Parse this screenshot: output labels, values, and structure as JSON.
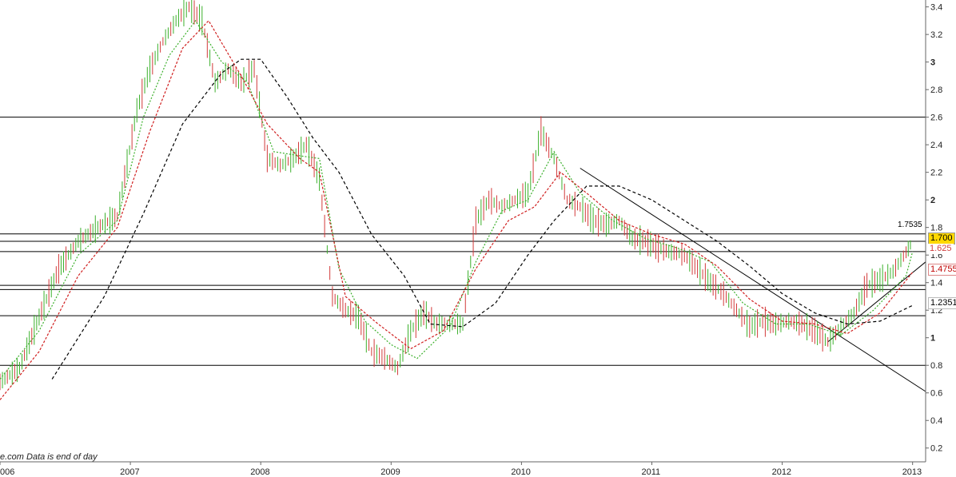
{
  "footer_text": "e.com  Data is end of day",
  "price_labels": {
    "last": "1.700",
    "fast_ma": "1.625",
    "mid_ma": "1.4755",
    "slow_ma": "1.2351",
    "resistance": "1.7535"
  },
  "colors": {
    "up_candle": "#3cb02c",
    "down_candle": "#d23a3a",
    "fast_ma": "#3cb02c",
    "mid_ma": "#d02020",
    "slow_ma": "#000000",
    "last_tag": "#ffd800"
  },
  "chart_data": {
    "type": "line",
    "title": "",
    "xlabel": "",
    "ylabel": "",
    "x_ticks": [
      "006",
      "2007",
      "2008",
      "2009",
      "2010",
      "2011",
      "2012",
      "2013"
    ],
    "y_ticks": [
      "3.4",
      "3.2",
      "3",
      "2.8",
      "2.6",
      "2.4",
      "2.2",
      "2",
      "1.8",
      "1.6",
      "1.4",
      "1.2",
      "1",
      "0.8",
      "0.6",
      "0.4",
      "0.2"
    ],
    "y_ticks_bold": [
      "3",
      "2",
      "1"
    ],
    "ylim": [
      0.1,
      3.45
    ],
    "xlim": [
      2006.0,
      2013.1
    ],
    "grid": false,
    "series": [
      {
        "style": "candles",
        "x": [
          2006.0,
          2006.15,
          2006.3,
          2006.45,
          2006.6,
          2006.75,
          2006.9,
          2007.05,
          2007.15,
          2007.25,
          2007.35,
          2007.45,
          2007.55,
          2007.65,
          2007.75,
          2007.85,
          2007.95,
          2008.05,
          2008.15,
          2008.25,
          2008.35,
          2008.45,
          2008.55,
          2008.65,
          2008.75,
          2008.85,
          2008.95,
          2009.05,
          2009.15,
          2009.25,
          2009.35,
          2009.45,
          2009.55,
          2009.65,
          2009.75,
          2009.85,
          2009.95,
          2010.05,
          2010.15,
          2010.25,
          2010.35,
          2010.45,
          2010.55,
          2010.65,
          2010.75,
          2010.85,
          2010.95,
          2011.05,
          2011.15,
          2011.25,
          2011.35,
          2011.45,
          2011.55,
          2011.65,
          2011.75,
          2011.85,
          2011.95,
          2012.05,
          2012.15,
          2012.25,
          2012.35,
          2012.45,
          2012.55,
          2012.65,
          2012.75,
          2012.85,
          2012.95,
          2013.0
        ],
        "y": [
          0.68,
          0.78,
          1.15,
          1.5,
          1.7,
          1.8,
          1.88,
          2.65,
          2.95,
          3.15,
          3.3,
          3.4,
          3.3,
          2.85,
          2.95,
          2.85,
          2.95,
          2.3,
          2.25,
          2.3,
          2.4,
          2.15,
          1.3,
          1.2,
          1.15,
          0.9,
          0.85,
          0.78,
          1.05,
          1.18,
          1.1,
          1.1,
          1.1,
          1.85,
          2.0,
          1.95,
          2.0,
          2.05,
          2.5,
          2.3,
          2.0,
          1.95,
          1.85,
          1.82,
          1.85,
          1.72,
          1.7,
          1.65,
          1.62,
          1.6,
          1.5,
          1.4,
          1.32,
          1.2,
          1.08,
          1.12,
          1.1,
          1.12,
          1.1,
          1.05,
          0.97,
          1.08,
          1.18,
          1.38,
          1.42,
          1.48,
          1.62,
          1.7
        ]
      },
      {
        "style": "fast_ma",
        "x": [
          2006.0,
          2006.3,
          2006.6,
          2006.9,
          2007.1,
          2007.3,
          2007.5,
          2007.7,
          2007.9,
          2008.1,
          2008.3,
          2008.45,
          2008.6,
          2008.8,
          2009.0,
          2009.2,
          2009.45,
          2009.65,
          2009.85,
          2010.05,
          2010.25,
          2010.45,
          2010.7,
          2010.95,
          2011.2,
          2011.45,
          2011.7,
          2011.95,
          2012.2,
          2012.45,
          2012.7,
          2012.95,
          2013.0
        ],
        "y": [
          0.7,
          1.05,
          1.6,
          1.85,
          2.6,
          3.05,
          3.3,
          3.0,
          2.85,
          2.35,
          2.32,
          2.3,
          1.5,
          1.12,
          0.95,
          0.85,
          1.08,
          1.55,
          1.92,
          2.0,
          2.35,
          2.05,
          1.85,
          1.72,
          1.65,
          1.55,
          1.25,
          1.1,
          1.1,
          1.02,
          1.2,
          1.45,
          1.625
        ]
      },
      {
        "style": "mid_ma",
        "x": [
          2006.0,
          2006.3,
          2006.6,
          2006.9,
          2007.15,
          2007.4,
          2007.6,
          2007.85,
          2008.05,
          2008.3,
          2008.45,
          2008.65,
          2008.9,
          2009.15,
          2009.4,
          2009.65,
          2009.9,
          2010.1,
          2010.3,
          2010.5,
          2010.75,
          2011.0,
          2011.25,
          2011.5,
          2011.75,
          2012.0,
          2012.25,
          2012.5,
          2012.75,
          2013.0
        ],
        "y": [
          0.55,
          0.9,
          1.45,
          1.8,
          2.5,
          3.1,
          3.3,
          2.9,
          2.55,
          2.3,
          2.2,
          1.3,
          1.1,
          0.92,
          1.05,
          1.5,
          1.85,
          1.95,
          2.2,
          2.05,
          1.85,
          1.75,
          1.68,
          1.52,
          1.28,
          1.12,
          1.1,
          1.03,
          1.18,
          1.4755
        ]
      },
      {
        "style": "slow_ma",
        "x": [
          2006.4,
          2006.8,
          2007.1,
          2007.4,
          2007.7,
          2007.85,
          2008.0,
          2008.2,
          2008.4,
          2008.6,
          2008.85,
          2009.1,
          2009.3,
          2009.55,
          2009.8,
          2010.05,
          2010.25,
          2010.5,
          2010.75,
          2011.0,
          2011.25,
          2011.5,
          2011.75,
          2012.0,
          2012.25,
          2012.5,
          2012.75,
          2013.0
        ],
        "y": [
          0.7,
          1.3,
          1.9,
          2.55,
          2.92,
          3.02,
          3.02,
          2.75,
          2.45,
          2.2,
          1.75,
          1.45,
          1.1,
          1.08,
          1.25,
          1.6,
          1.85,
          2.1,
          2.1,
          2.0,
          1.85,
          1.7,
          1.52,
          1.32,
          1.18,
          1.1,
          1.12,
          1.2351
        ]
      }
    ],
    "horizontal_lines": [
      2.6,
      1.7535,
      1.7,
      1.625,
      1.38,
      1.35,
      1.16,
      0.8
    ],
    "trendlines": [
      {
        "x1": 2010.45,
        "y1": 2.23,
        "x2": 2013.1,
        "y2": 0.61
      },
      {
        "x1": 2012.35,
        "y1": 0.97,
        "x2": 2013.1,
        "y2": 1.55
      }
    ],
    "annotations": [
      "1.7535"
    ]
  }
}
